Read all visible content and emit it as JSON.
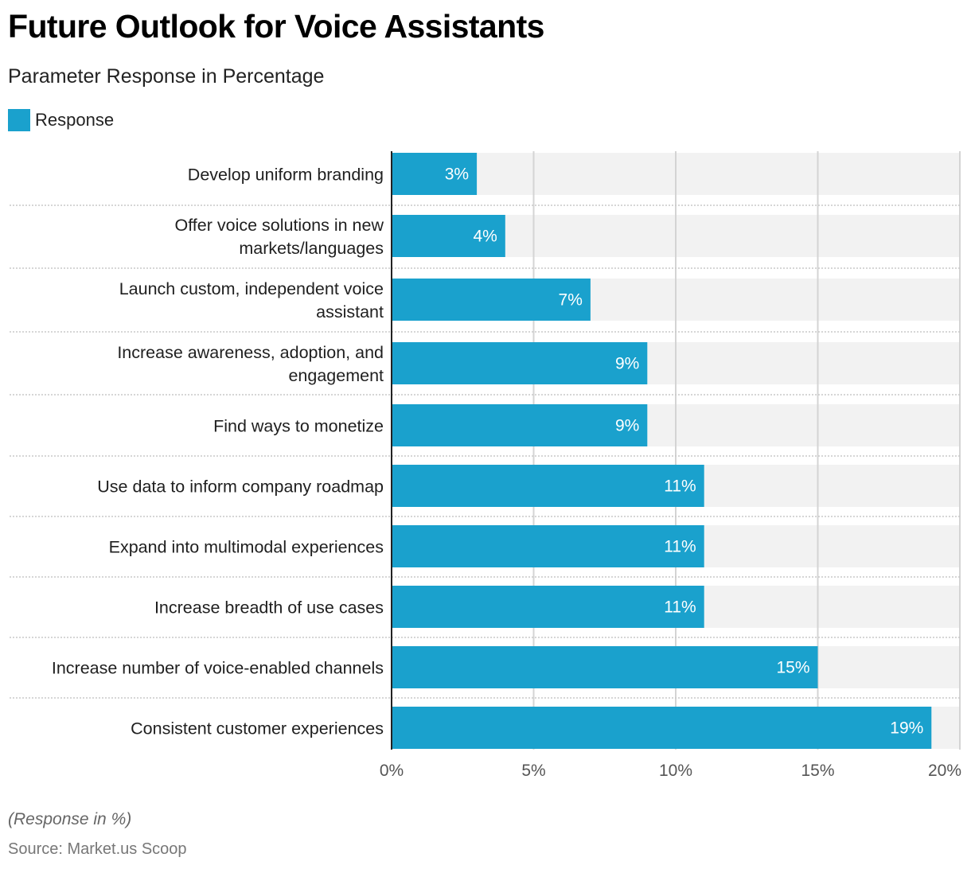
{
  "chart_data": {
    "type": "bar",
    "orientation": "horizontal",
    "title": "Future Outlook for Voice Assistants",
    "subtitle": "Parameter Response in Percentage",
    "xlabel": "",
    "ylabel": "",
    "xlim": [
      0,
      20
    ],
    "ticks": [
      0,
      5,
      10,
      15,
      20
    ],
    "tick_labels": [
      "0%",
      "5%",
      "10%",
      "15%",
      "20%"
    ],
    "grid": true,
    "legend": {
      "position": "top-left",
      "entries": [
        "Response"
      ]
    },
    "categories": [
      [
        "Develop uniform branding"
      ],
      [
        "Offer voice solutions in new",
        "markets/languages"
      ],
      [
        "Launch custom, independent voice",
        "assistant"
      ],
      [
        "Increase awareness, adoption, and",
        "engagement"
      ],
      [
        "Find ways to monetize"
      ],
      [
        "Use data to inform company roadmap"
      ],
      [
        "Expand into multimodal experiences"
      ],
      [
        "Increase breadth of use cases"
      ],
      [
        "Increase number of voice-enabled channels"
      ],
      [
        "Consistent customer experiences"
      ]
    ],
    "series": [
      {
        "name": "Response",
        "color": "#1aa1cd",
        "values": [
          3,
          4,
          7,
          9,
          9,
          11,
          11,
          11,
          15,
          19
        ],
        "labels": [
          "3%",
          "4%",
          "7%",
          "9%",
          "9%",
          "11%",
          "11%",
          "11%",
          "15%",
          "19%"
        ]
      }
    ],
    "track_color": "#f2f2f2",
    "grid_color": "#d4d4d4",
    "axis_color": "#222222"
  },
  "header": {
    "title": "Future Outlook for Voice Assistants",
    "subtitle": "Parameter Response in Percentage"
  },
  "legend": {
    "label": "Response",
    "color": "#1aa1cd"
  },
  "footer": {
    "note": "(Response in %)",
    "source": "Source: Market.us Scoop"
  }
}
